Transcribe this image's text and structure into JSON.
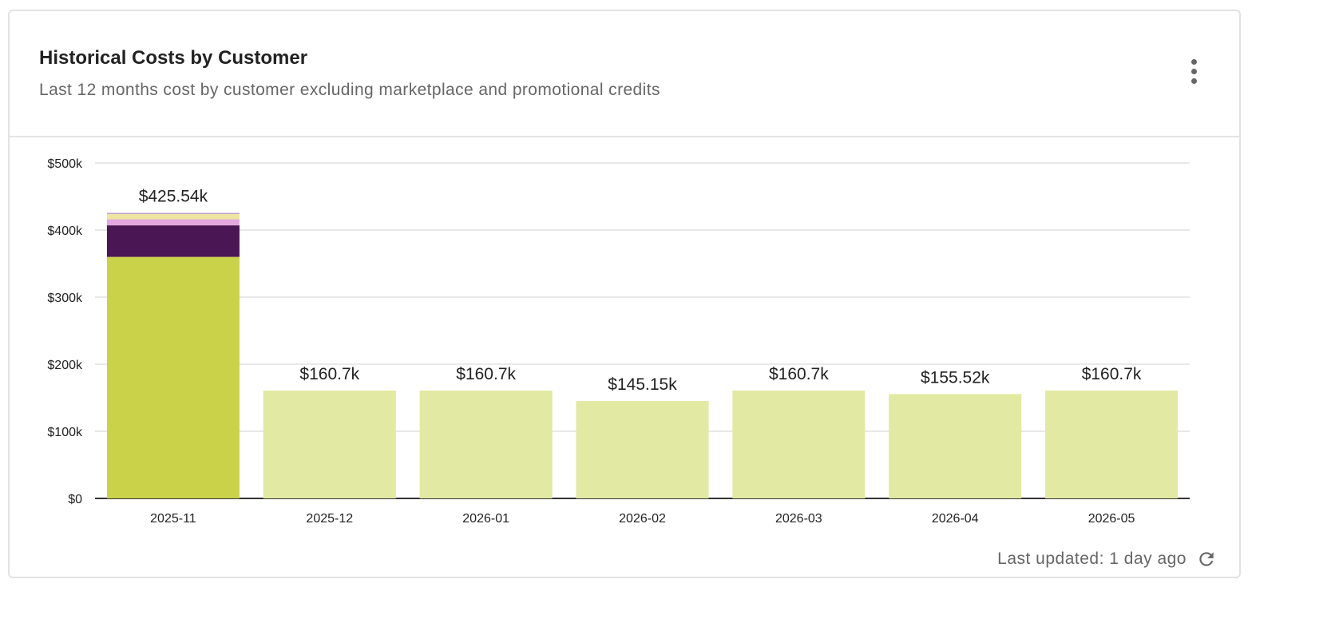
{
  "card": {
    "title": "Historical Costs by Customer",
    "subtitle": "Last 12 months cost by customer excluding marketplace and promotional credits",
    "footer": "Last updated: 1 day ago",
    "menu_icon": "more-vert-icon",
    "refresh_icon": "refresh-icon"
  },
  "chart_data": {
    "type": "bar",
    "stacked": true,
    "title": "",
    "xlabel": "",
    "ylabel": "",
    "ylim": [
      0,
      500000
    ],
    "y_ticks": [
      "$0",
      "$100k",
      "$200k",
      "$300k",
      "$400k",
      "$500k"
    ],
    "y_tick_values": [
      0,
      100000,
      200000,
      300000,
      400000,
      500000
    ],
    "categories": [
      "2025-11",
      "2025-12",
      "2026-01",
      "2026-02",
      "2026-03",
      "2026-04",
      "2026-05"
    ],
    "totals_labels": [
      "$425.54k",
      "$160.7k",
      "$160.7k",
      "$145.15k",
      "$160.7k",
      "$155.52k",
      "$160.7k"
    ],
    "totals": [
      425540,
      160700,
      160700,
      145150,
      160700,
      155520,
      160700
    ],
    "current_period_colors": [
      "#cad24a",
      "#4b1654",
      "#e3a8e0",
      "#ede5a0",
      "#b693cf"
    ],
    "forecast_color": "#e2e9a2",
    "grid": true,
    "legend": "none",
    "series": [
      {
        "values": [
          360000,
          160700,
          160700,
          145150,
          160700,
          155520,
          160700
        ]
      },
      {
        "values": [
          47000,
          0,
          0,
          0,
          0,
          0,
          0
        ]
      },
      {
        "values": [
          9000,
          0,
          0,
          0,
          0,
          0,
          0
        ]
      },
      {
        "values": [
          8000,
          0,
          0,
          0,
          0,
          0,
          0
        ]
      },
      {
        "values": [
          1540,
          0,
          0,
          0,
          0,
          0,
          0
        ]
      }
    ]
  }
}
